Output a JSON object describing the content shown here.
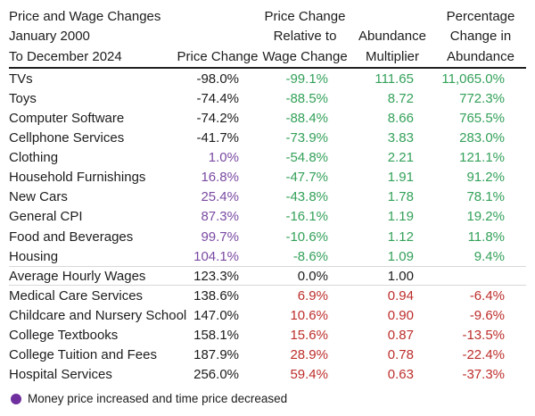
{
  "colors": {
    "green": "#34a15a",
    "red": "#bd2e2b",
    "purple_value": "#7a4aa2",
    "legend_dot": "#6f2f9f",
    "text": "#1c1c1e",
    "header_rule": "#1f1f1f",
    "row_rule": "#d8d8d8"
  },
  "header": {
    "col1": [
      "Price and Wage Changes",
      "January 2000",
      "To December 2024"
    ],
    "col2": [
      "",
      "",
      "Price Change"
    ],
    "col3": [
      "Price Change",
      "Relative to",
      "Wage Change"
    ],
    "col4": [
      "",
      "Abundance",
      "Multiplier"
    ],
    "col5": [
      "Percentage",
      "Change in",
      "Abundance"
    ]
  },
  "legend": {
    "marker": "purple-circle",
    "label": "Money price increased and time price decreased"
  },
  "chart_data": {
    "type": "table",
    "title": "Price and Wage Changes January 2000 To December 2024",
    "columns": [
      "Category",
      "Price Change",
      "Price Change Relative to Wage Change",
      "Abundance Multiplier",
      "Percentage Change in Abundance"
    ],
    "rows": [
      {
        "category": "TVs",
        "price_change": "-98.0%",
        "relative_to_wage": "-99.1%",
        "abundance_multiplier": "111.65",
        "pct_change_abundance": "11,065.0%",
        "price_style": "plain",
        "value_style": "green",
        "divider": false
      },
      {
        "category": "Toys",
        "price_change": "-74.4%",
        "relative_to_wage": "-88.5%",
        "abundance_multiplier": "8.72",
        "pct_change_abundance": "772.3%",
        "price_style": "plain",
        "value_style": "green",
        "divider": false
      },
      {
        "category": "Computer Software",
        "price_change": "-74.2%",
        "relative_to_wage": "-88.4%",
        "abundance_multiplier": "8.66",
        "pct_change_abundance": "765.5%",
        "price_style": "plain",
        "value_style": "green",
        "divider": false
      },
      {
        "category": "Cellphone Services",
        "price_change": "-41.7%",
        "relative_to_wage": "-73.9%",
        "abundance_multiplier": "3.83",
        "pct_change_abundance": "283.0%",
        "price_style": "plain",
        "value_style": "green",
        "divider": false
      },
      {
        "category": "Clothing",
        "price_change": "1.0%",
        "relative_to_wage": "-54.8%",
        "abundance_multiplier": "2.21",
        "pct_change_abundance": "121.1%",
        "price_style": "purple",
        "value_style": "green",
        "divider": false
      },
      {
        "category": "Household Furnishings",
        "price_change": "16.8%",
        "relative_to_wage": "-47.7%",
        "abundance_multiplier": "1.91",
        "pct_change_abundance": "91.2%",
        "price_style": "purple",
        "value_style": "green",
        "divider": false
      },
      {
        "category": "New Cars",
        "price_change": "25.4%",
        "relative_to_wage": "-43.8%",
        "abundance_multiplier": "1.78",
        "pct_change_abundance": "78.1%",
        "price_style": "purple",
        "value_style": "green",
        "divider": false
      },
      {
        "category": "General CPI",
        "price_change": "87.3%",
        "relative_to_wage": "-16.1%",
        "abundance_multiplier": "1.19",
        "pct_change_abundance": "19.2%",
        "price_style": "purple",
        "value_style": "green",
        "divider": false
      },
      {
        "category": "Food and Beverages",
        "price_change": "99.7%",
        "relative_to_wage": "-10.6%",
        "abundance_multiplier": "1.12",
        "pct_change_abundance": "11.8%",
        "price_style": "purple",
        "value_style": "green",
        "divider": false
      },
      {
        "category": "Housing",
        "price_change": "104.1%",
        "relative_to_wage": "-8.6%",
        "abundance_multiplier": "1.09",
        "pct_change_abundance": "9.4%",
        "price_style": "purple",
        "value_style": "green",
        "divider": false
      },
      {
        "category": "Average Hourly Wages",
        "price_change": "123.3%",
        "relative_to_wage": "0.0%",
        "abundance_multiplier": "1.00",
        "pct_change_abundance": "",
        "price_style": "plain",
        "value_style": "plain",
        "divider": true
      },
      {
        "category": "Medical Care Services",
        "price_change": "138.6%",
        "relative_to_wage": "6.9%",
        "abundance_multiplier": "0.94",
        "pct_change_abundance": "-6.4%",
        "price_style": "plain",
        "value_style": "red",
        "divider": false
      },
      {
        "category": "Childcare and Nursery School",
        "price_change": "147.0%",
        "relative_to_wage": "10.6%",
        "abundance_multiplier": "0.90",
        "pct_change_abundance": "-9.6%",
        "price_style": "plain",
        "value_style": "red",
        "divider": false
      },
      {
        "category": "College Textbooks",
        "price_change": "158.1%",
        "relative_to_wage": "15.6%",
        "abundance_multiplier": "0.87",
        "pct_change_abundance": "-13.5%",
        "price_style": "plain",
        "value_style": "red",
        "divider": false
      },
      {
        "category": "College Tuition and Fees",
        "price_change": "187.9%",
        "relative_to_wage": "28.9%",
        "abundance_multiplier": "0.78",
        "pct_change_abundance": "-22.4%",
        "price_style": "plain",
        "value_style": "red",
        "divider": false
      },
      {
        "category": "Hospital Services",
        "price_change": "256.0%",
        "relative_to_wage": "59.4%",
        "abundance_multiplier": "0.63",
        "pct_change_abundance": "-37.3%",
        "price_style": "plain",
        "value_style": "red",
        "divider": false
      }
    ]
  }
}
